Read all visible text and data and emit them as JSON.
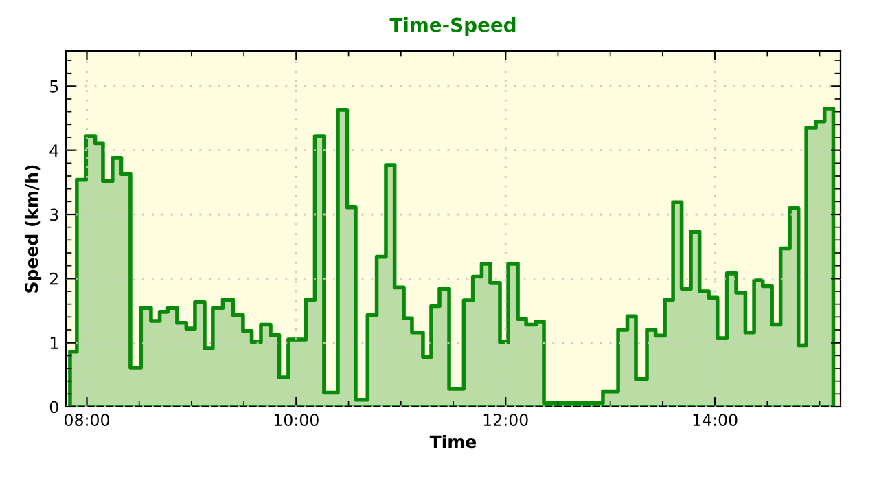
{
  "chart_data": {
    "type": "area",
    "title": "Time-Speed",
    "xlabel": "Time",
    "ylabel": "Speed (km/h)",
    "xlim": [
      7.8,
      15.2
    ],
    "ylim": [
      0,
      5.55
    ],
    "xticks": [
      {
        "value": 8,
        "label": "08:00"
      },
      {
        "value": 10,
        "label": "10:00"
      },
      {
        "value": 12,
        "label": "12:00"
      },
      {
        "value": 14,
        "label": "14:00"
      }
    ],
    "yticks": [
      0,
      1,
      2,
      3,
      4,
      5
    ],
    "grid": true,
    "line_style": "solid",
    "marker": "none",
    "series": [
      {
        "color": "#0a8a0a",
        "x": [
          7.839,
          7.904,
          7.992,
          8.079,
          8.154,
          8.245,
          8.328,
          8.416,
          8.517,
          8.613,
          8.696,
          8.774,
          8.862,
          8.95,
          9.033,
          9.125,
          9.203,
          9.299,
          9.396,
          9.492,
          9.575,
          9.663,
          9.755,
          9.837,
          9.925,
          10.092,
          10.178,
          10.266,
          10.398,
          10.486,
          10.568,
          10.682,
          10.769,
          10.857,
          10.94,
          11.028,
          11.106,
          11.211,
          11.29,
          11.369,
          11.461,
          11.601,
          11.688,
          11.772,
          11.854,
          11.946,
          12.025,
          12.117,
          12.196,
          12.291,
          12.366,
          12.93,
          13.075,
          13.163,
          13.245,
          13.35,
          13.433,
          13.521,
          13.6,
          13.682,
          13.77,
          13.853,
          13.941,
          14.024,
          14.115,
          14.203,
          14.291,
          14.374,
          14.457,
          14.545,
          14.627,
          14.715,
          14.798,
          14.873,
          14.964,
          15.047,
          15.131
        ],
        "values": [
          0.86,
          3.54,
          4.22,
          4.11,
          3.52,
          3.88,
          3.63,
          0.61,
          1.54,
          1.34,
          1.48,
          1.54,
          1.31,
          1.22,
          1.63,
          0.91,
          1.54,
          1.67,
          1.43,
          1.18,
          1.01,
          1.28,
          1.12,
          0.46,
          1.05,
          1.67,
          4.22,
          0.22,
          4.63,
          3.11,
          0.11,
          1.43,
          2.34,
          3.77,
          1.86,
          1.38,
          1.16,
          0.78,
          1.57,
          1.84,
          0.28,
          1.66,
          2.03,
          2.23,
          1.93,
          1.01,
          2.23,
          1.37,
          1.28,
          1.33,
          0.06,
          0.24,
          1.2,
          1.41,
          0.43,
          1.2,
          1.11,
          1.67,
          3.19,
          1.84,
          2.73,
          1.8,
          1.7,
          1.07,
          2.08,
          1.78,
          1.16,
          1.97,
          1.88,
          1.28,
          2.47,
          3.1,
          0.96,
          4.35,
          4.45,
          4.65,
          4.65
        ]
      }
    ]
  }
}
